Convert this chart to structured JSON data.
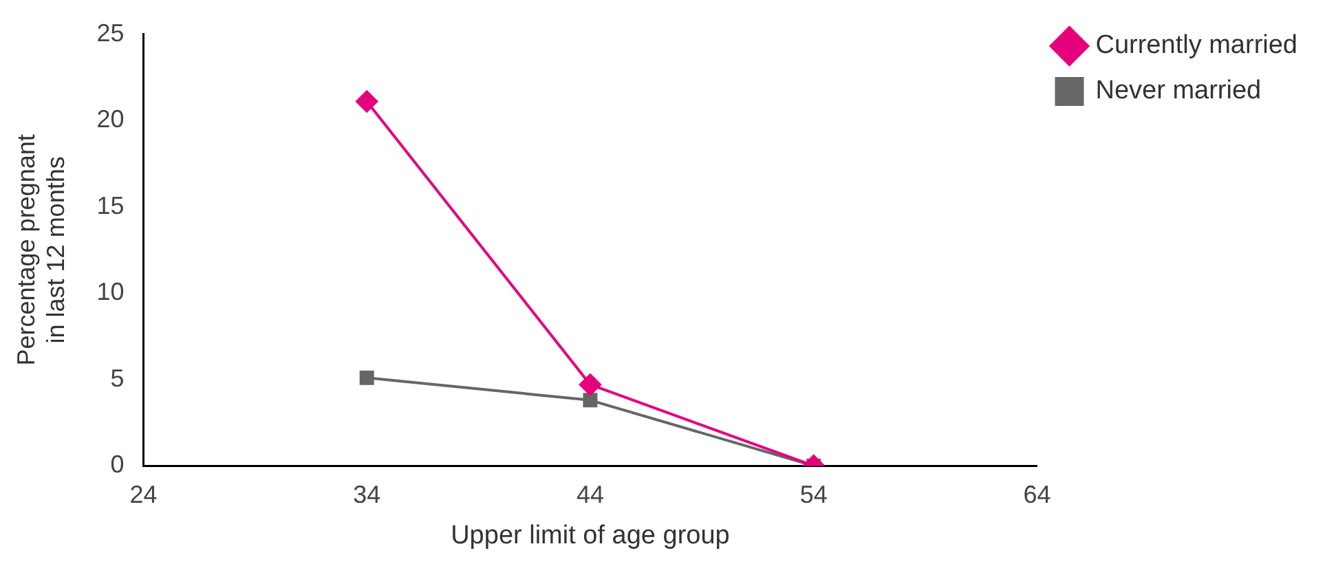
{
  "chart_data": {
    "type": "line",
    "xlabel": "Upper limit of age group",
    "ylabel": "Percentage pregnant in last 12 months",
    "x": [
      34,
      44,
      54
    ],
    "series": [
      {
        "name": "Currently married",
        "color": "#e6007e",
        "values": [
          21.1,
          4.7,
          0
        ],
        "marker": "diamond"
      },
      {
        "name": "Never married",
        "color": "#666666",
        "values": [
          5.1,
          3.8,
          0
        ],
        "marker": "square"
      }
    ],
    "xlim": [
      24,
      64
    ],
    "xticks": [
      24,
      34,
      44,
      54,
      64
    ],
    "ylim": [
      0,
      25
    ],
    "yticks": [
      0,
      5,
      10,
      15,
      20,
      25
    ],
    "grid": false,
    "legend": "top right",
    "line_style": "solid"
  }
}
